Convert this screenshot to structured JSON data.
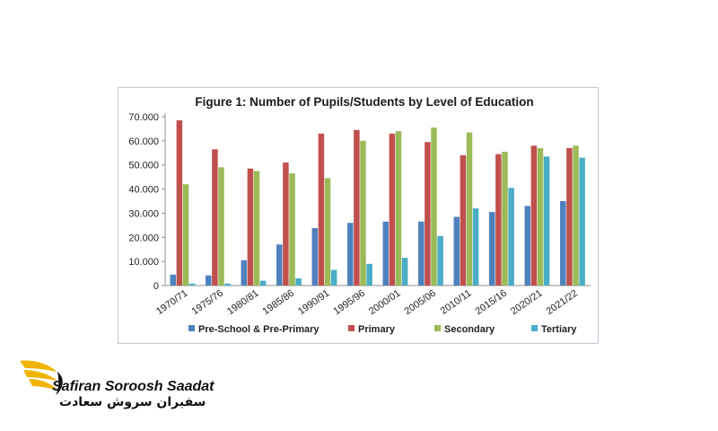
{
  "brand": {
    "name_latin": "Safiran Soroosh Saadat",
    "name_farsi": "سفیران سروش سعادت",
    "accent_color": "#f0b400"
  },
  "chart_data": {
    "type": "bar",
    "title": "Figure 1: Number of Pupils/Students by Level of Education",
    "categories": [
      "1970/71",
      "1975/76",
      "1980/81",
      "1985/86",
      "1990/91",
      "1995/96",
      "2000/01",
      "2005/06",
      "2010/11",
      "2015/16",
      "2020/21",
      "2021/22"
    ],
    "series": [
      {
        "name": "Pre-School & Pre-Primary",
        "color": "#4f81bd",
        "values": [
          4500,
          4200,
          10500,
          17000,
          23800,
          26000,
          26500,
          26500,
          28500,
          30500,
          33000,
          35000
        ]
      },
      {
        "name": "Primary",
        "color": "#c0504d",
        "values": [
          68500,
          56500,
          48500,
          51000,
          63000,
          64500,
          63000,
          59500,
          54000,
          54500,
          58000,
          57000
        ]
      },
      {
        "name": "Secondary",
        "color": "#9bbb59",
        "values": [
          42000,
          49000,
          47500,
          46500,
          44500,
          60000,
          64000,
          65500,
          63500,
          55500,
          57000,
          58000
        ]
      },
      {
        "name": "Tertiary",
        "color": "#4bacc6",
        "values": [
          800,
          800,
          2000,
          3000,
          6500,
          9000,
          11500,
          20500,
          32000,
          40500,
          53500,
          53000
        ]
      }
    ],
    "ylim": [
      0,
      70000
    ],
    "yticks": [
      "0",
      "10.000",
      "20.000",
      "30.000",
      "40.000",
      "50.000",
      "60.000",
      "70.000"
    ],
    "legend_position": "bottom",
    "grid": false
  }
}
